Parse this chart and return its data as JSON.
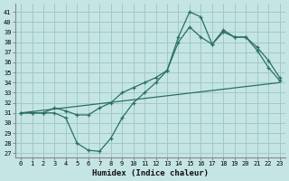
{
  "xlabel": "Humidex (Indice chaleur)",
  "bg_color": "#c5e5e5",
  "line_color": "#2a7060",
  "grid_color": "#a0c8c8",
  "xlim": [
    -0.5,
    23.5
  ],
  "ylim": [
    26.6,
    41.8
  ],
  "yticks": [
    27,
    28,
    29,
    30,
    31,
    32,
    33,
    34,
    35,
    36,
    37,
    38,
    39,
    40,
    41
  ],
  "xticks": [
    0,
    1,
    2,
    3,
    4,
    5,
    6,
    7,
    8,
    9,
    10,
    11,
    12,
    13,
    14,
    15,
    16,
    17,
    18,
    19,
    20,
    21,
    22,
    23
  ],
  "curve1_x": [
    0,
    1,
    2,
    3,
    4,
    5,
    6,
    7,
    8,
    9,
    10,
    11,
    12,
    13,
    14,
    15,
    16,
    17,
    18,
    19,
    20,
    21,
    22,
    23
  ],
  "curve1_y": [
    31.0,
    31.0,
    31.0,
    31.0,
    30.5,
    28.0,
    27.3,
    27.2,
    28.5,
    30.5,
    32.0,
    33.0,
    34.0,
    35.2,
    38.5,
    41.0,
    40.5,
    37.8,
    39.0,
    38.5,
    38.5,
    37.2,
    35.5,
    34.2
  ],
  "curve2_x": [
    0,
    1,
    2,
    3,
    4,
    5,
    6,
    7,
    8,
    9,
    10,
    11,
    12,
    13,
    14,
    15,
    16,
    17,
    18,
    19,
    20,
    21,
    22,
    23
  ],
  "curve2_y": [
    31.0,
    31.0,
    31.0,
    31.5,
    31.2,
    30.8,
    30.8,
    31.5,
    32.0,
    33.0,
    33.5,
    34.0,
    34.5,
    35.2,
    38.0,
    39.5,
    38.5,
    37.8,
    39.2,
    38.5,
    38.5,
    37.5,
    36.2,
    34.5
  ],
  "trend_x": [
    0,
    23
  ],
  "trend_y": [
    31.0,
    34.0
  ]
}
